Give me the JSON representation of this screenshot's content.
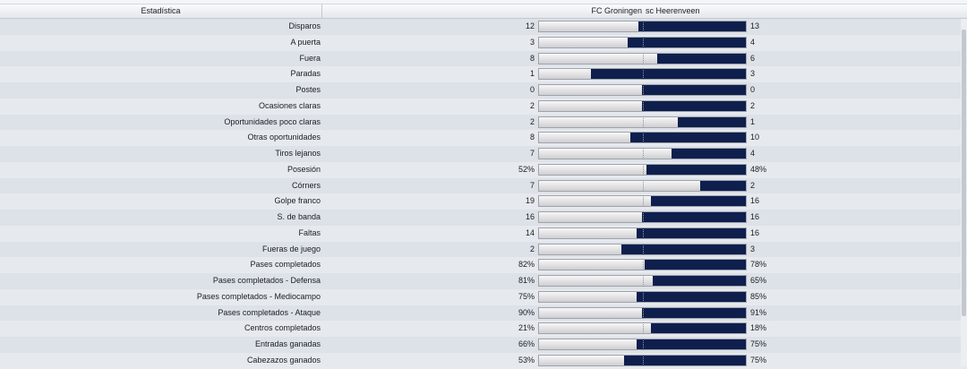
{
  "header": {
    "stat_label": "Estadística",
    "home_team": "FC Groningen",
    "away_team": "sc Heerenveen"
  },
  "colors": {
    "away_fill": "#0e1f4d",
    "home_fill": "#e0e0e2"
  },
  "rows": [
    {
      "label": "Disparos",
      "home": "12",
      "away": "13",
      "home_share": 0.48
    },
    {
      "label": "A puerta",
      "home": "3",
      "away": "4",
      "home_share": 0.43
    },
    {
      "label": "Fuera",
      "home": "8",
      "away": "6",
      "home_share": 0.57
    },
    {
      "label": "Paradas",
      "home": "1",
      "away": "3",
      "home_share": 0.25
    },
    {
      "label": "Postes",
      "home": "0",
      "away": "0",
      "home_share": 0.5
    },
    {
      "label": "Ocasiones claras",
      "home": "2",
      "away": "2",
      "home_share": 0.5
    },
    {
      "label": "Oportunidades poco claras",
      "home": "2",
      "away": "1",
      "home_share": 0.67
    },
    {
      "label": "Otras oportunidades",
      "home": "8",
      "away": "10",
      "home_share": 0.44
    },
    {
      "label": "Tiros lejanos",
      "home": "7",
      "away": "4",
      "home_share": 0.64
    },
    {
      "label": "Posesión",
      "home": "52%",
      "away": "48%",
      "home_share": 0.52
    },
    {
      "label": "Córners",
      "home": "7",
      "away": "2",
      "home_share": 0.78
    },
    {
      "label": "Golpe franco",
      "home": "19",
      "away": "16",
      "home_share": 0.54
    },
    {
      "label": "S. de banda",
      "home": "16",
      "away": "16",
      "home_share": 0.5
    },
    {
      "label": "Faltas",
      "home": "14",
      "away": "16",
      "home_share": 0.47
    },
    {
      "label": "Fueras de juego",
      "home": "2",
      "away": "3",
      "home_share": 0.4
    },
    {
      "label": "Pases completados",
      "home": "82%",
      "away": "78%",
      "home_share": 0.51
    },
    {
      "label": "Pases completados - Defensa",
      "home": "81%",
      "away": "65%",
      "home_share": 0.55
    },
    {
      "label": "Pases completados - Mediocampo",
      "home": "75%",
      "away": "85%",
      "home_share": 0.47
    },
    {
      "label": "Pases completados - Ataque",
      "home": "90%",
      "away": "91%",
      "home_share": 0.5
    },
    {
      "label": "Centros completados",
      "home": "21%",
      "away": "18%",
      "home_share": 0.54
    },
    {
      "label": "Entradas ganadas",
      "home": "66%",
      "away": "75%",
      "home_share": 0.47
    },
    {
      "label": "Cabezazos ganados",
      "home": "53%",
      "away": "75%",
      "home_share": 0.41
    }
  ]
}
